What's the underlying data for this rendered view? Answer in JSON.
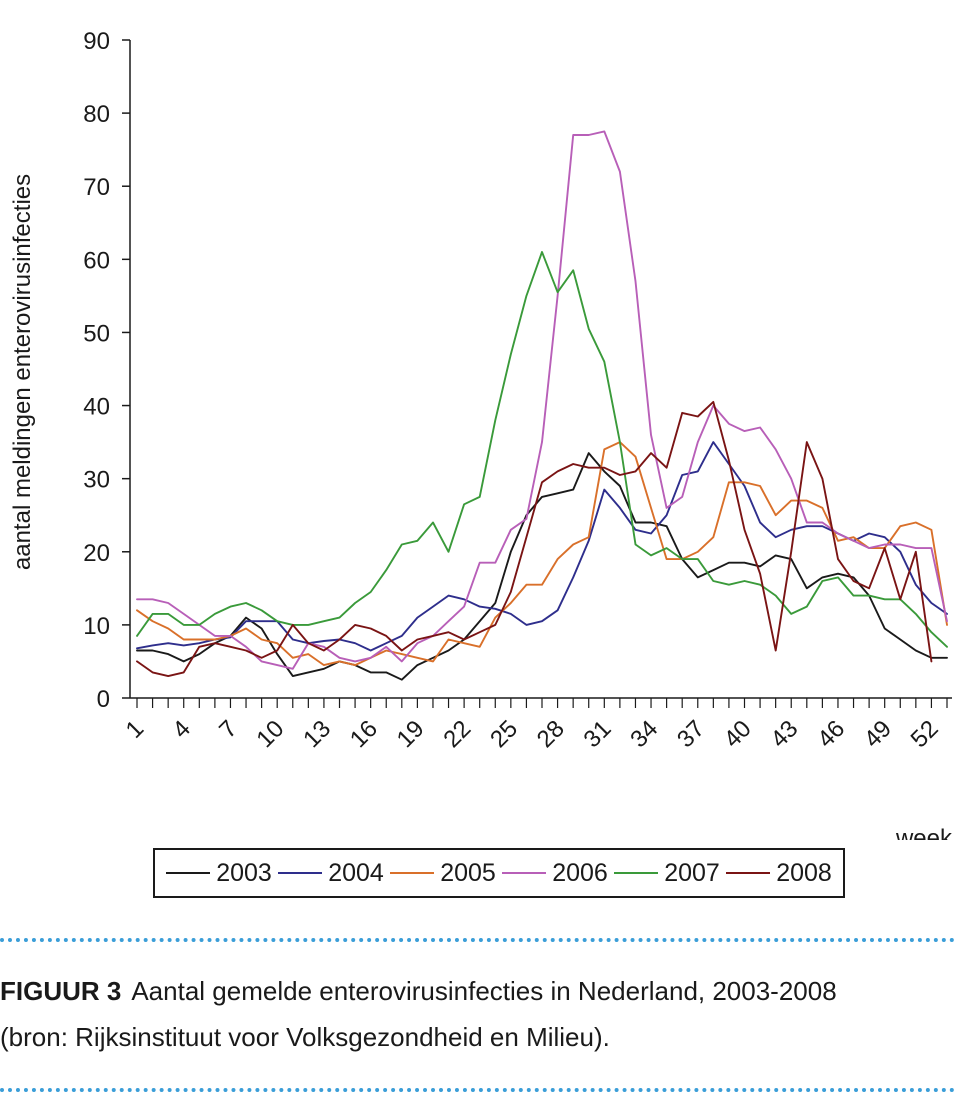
{
  "chart_data": {
    "type": "line",
    "title": "",
    "xlabel": "week",
    "ylabel": "aantal meldingen enterovirusinfecties",
    "ylim": [
      0,
      90
    ],
    "yticks": [
      0,
      10,
      20,
      30,
      40,
      50,
      60,
      70,
      80,
      90
    ],
    "xlim": [
      1,
      53
    ],
    "xticks": [
      1,
      4,
      7,
      10,
      13,
      16,
      19,
      22,
      25,
      28,
      31,
      34,
      37,
      40,
      43,
      46,
      49,
      52
    ],
    "series": [
      {
        "name": "2003",
        "color": "#1a1a1a",
        "values": [
          6.5,
          6.5,
          6,
          5,
          6,
          7.5,
          8.5,
          11,
          9.5,
          6,
          3,
          3.5,
          4,
          5,
          4.5,
          3.5,
          3.5,
          2.5,
          4.5,
          5.5,
          6.5,
          8,
          10.5,
          13,
          20,
          25,
          27.5,
          28,
          28.5,
          33.5,
          31,
          29,
          24,
          24,
          23.5,
          19,
          16.5,
          17.5,
          18.5,
          18.5,
          18,
          19.5,
          19,
          15,
          16.5,
          17,
          16.5,
          14,
          9.5,
          8,
          6.5,
          5.5,
          5.5
        ]
      },
      {
        "name": "2004",
        "color": "#2e2e8c",
        "values": [
          6.8,
          7.2,
          7.5,
          7.2,
          7.5,
          8,
          8.3,
          10.5,
          10.5,
          10.5,
          8,
          7.5,
          7.8,
          8,
          7.5,
          6.5,
          7.5,
          8.5,
          11,
          12.5,
          14,
          13.5,
          12.5,
          12.2,
          11.5,
          10,
          10.5,
          12,
          16.5,
          21.5,
          28.5,
          26,
          23,
          22.5,
          25,
          30.5,
          31,
          35,
          32,
          29,
          24,
          22,
          23,
          23.5,
          23.5,
          22.5,
          21.5,
          22.5,
          22,
          20,
          15.5,
          13,
          11.5
        ]
      },
      {
        "name": "2005",
        "color": "#d9702a",
        "values": [
          12,
          10.5,
          9.5,
          8,
          8,
          8,
          8.5,
          9.5,
          8,
          7.5,
          5.5,
          6,
          4.5,
          5,
          4.5,
          5.5,
          6.5,
          6,
          5.5,
          5,
          8,
          7.5,
          7,
          11,
          13,
          15.5,
          15.5,
          19,
          21,
          22,
          34,
          35,
          33,
          26,
          19,
          19,
          20,
          22,
          29.5,
          29.5,
          29,
          25,
          27,
          27,
          26,
          21.5,
          22,
          20.5,
          20.5,
          23.5,
          24,
          23,
          10
        ]
      },
      {
        "name": "2006",
        "color": "#b85fb8",
        "values": [
          13.5,
          13.5,
          13,
          11.5,
          10,
          8.5,
          8.5,
          7,
          5,
          4.5,
          4,
          7.5,
          7,
          5.5,
          5,
          5.5,
          7,
          5,
          7.5,
          8.5,
          10.5,
          12.5,
          18.5,
          18.5,
          23,
          24.5,
          35,
          55,
          77,
          77,
          77.5,
          72,
          57,
          36,
          26,
          27.5,
          35,
          40,
          37.5,
          36.5,
          37,
          34,
          30,
          24,
          24,
          22.5,
          21.5,
          20.5,
          21,
          21,
          20.5,
          20.5,
          10.5
        ]
      },
      {
        "name": "2007",
        "color": "#3a9a3a",
        "values": [
          8.5,
          11.5,
          11.5,
          10,
          10,
          11.5,
          12.5,
          13,
          12,
          10.5,
          10,
          10,
          10.5,
          11,
          13,
          14.5,
          17.5,
          21,
          21.5,
          24,
          20,
          26.5,
          27.5,
          38,
          47,
          55,
          61,
          55.5,
          58.5,
          50.5,
          46,
          35,
          21,
          19.5,
          20.5,
          19,
          19,
          16,
          15.5,
          16,
          15.5,
          14,
          11.5,
          12.5,
          16,
          16.5,
          14,
          14,
          13.5,
          13.5,
          11.5,
          9,
          7
        ]
      },
      {
        "name": "2008",
        "color": "#7a1414",
        "values": [
          5,
          3.5,
          3,
          3.5,
          7,
          7.5,
          7,
          6.5,
          5.5,
          6.5,
          10,
          7.5,
          6.5,
          8,
          10,
          9.5,
          8.5,
          6.5,
          8,
          8.5,
          9,
          8,
          9,
          10,
          14.5,
          22,
          29.5,
          31,
          32,
          31.5,
          31.5,
          30.5,
          31,
          33.5,
          31.5,
          39,
          38.5,
          40.5,
          32.5,
          23,
          17,
          6.5,
          20,
          35,
          30,
          19,
          16,
          15,
          20.5,
          13.5,
          20,
          5
        ]
      }
    ]
  },
  "legend": {
    "items": [
      {
        "label": "2003",
        "color": "#1a1a1a"
      },
      {
        "label": "2004",
        "color": "#2e2e8c"
      },
      {
        "label": "2005",
        "color": "#d9702a"
      },
      {
        "label": "2006",
        "color": "#b85fb8"
      },
      {
        "label": "2007",
        "color": "#3a9a3a"
      },
      {
        "label": "2008",
        "color": "#7a1414"
      }
    ]
  },
  "caption": {
    "label": "FIGUUR 3",
    "line1": "Aantal gemelde enterovirusinfecties in Nederland, 2003-2008",
    "line2": "(bron: Rijksinstituut voor Volksgezondheid en Milieu)."
  }
}
